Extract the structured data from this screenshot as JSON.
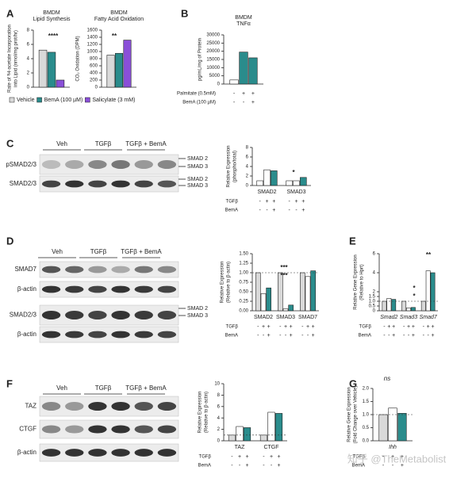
{
  "chart_data": [
    {
      "type": "bar",
      "title": [
        "BMDM",
        "Lipid Synthesis"
      ],
      "ylabel": [
        "Rate of ³H-acetate Incorporation",
        "into Lipid (nmol/mg prot/hr)"
      ],
      "categories": [
        null
      ],
      "ylim": [
        0,
        8
      ],
      "yticks": [
        0,
        2,
        4,
        6,
        8
      ],
      "series": [
        {
          "name": "Vehicle",
          "color": "#d9d9d9",
          "values": [
            5.2
          ]
        },
        {
          "name": "BemA (100 µM)",
          "color": "#2a8c8c",
          "values": [
            4.9
          ]
        },
        {
          "name": "Salicylate (3 mM)",
          "color": "#8a4fd8",
          "values": [
            1.0
          ]
        }
      ],
      "annotations": [
        "****"
      ]
    },
    {
      "type": "bar",
      "title": [
        "BMDM",
        "Fatty Acid Oxidation"
      ],
      "ylabel": [
        "CO₂ Oxidation (DPM)"
      ],
      "categories": [
        null
      ],
      "ylim": [
        0,
        1600
      ],
      "yticks": [
        0,
        200,
        400,
        600,
        800,
        1000,
        1200,
        1400,
        1600
      ],
      "series": [
        {
          "color": "#d9d9d9",
          "values": [
            900
          ]
        },
        {
          "color": "#2a8c8c",
          "values": [
            950
          ]
        },
        {
          "color": "#8a4fd8",
          "values": [
            1320
          ]
        }
      ],
      "annotations": [
        "**"
      ]
    },
    {
      "type": "bar",
      "title": [
        "BMDM",
        "TNFα"
      ],
      "ylabel": [
        "pg/mL/mg of Protein"
      ],
      "categories": [
        null
      ],
      "ylim": [
        0,
        30000
      ],
      "yticks": [
        0,
        5000,
        10000,
        15000,
        20000,
        25000,
        30000
      ],
      "series": [
        {
          "color": "#ffffff",
          "values": [
            2500
          ]
        },
        {
          "color": "#2a8c8c",
          "values": [
            19500
          ]
        },
        {
          "color": "#2a8c8c",
          "values": [
            16000
          ]
        }
      ],
      "conditions": [
        {
          "label": "Palmitate (0.5mM)",
          "signs": [
            "-",
            "+",
            "+"
          ]
        },
        {
          "label": "BemA (100 µM)",
          "signs": [
            "-",
            "-",
            "+"
          ]
        }
      ]
    },
    {
      "type": "bar",
      "ylabel": [
        "Relative Expression",
        "(phospho/total)"
      ],
      "categories": [
        "SMAD2",
        "SMAD3"
      ],
      "ylim": [
        0,
        8
      ],
      "yticks": [
        0,
        2,
        4,
        6,
        8
      ],
      "series": [
        {
          "color": "#ffffff",
          "values": [
            1,
            1
          ]
        },
        {
          "color": "#ffffff",
          "values": [
            3.3,
            1.0
          ]
        },
        {
          "color": "#2a8c8c",
          "values": [
            3.1,
            1.7
          ]
        }
      ],
      "conditions": [
        {
          "label": "TGFβ",
          "signs": [
            "-",
            "+",
            "+",
            "-",
            "+",
            "+"
          ]
        },
        {
          "label": "BemA",
          "signs": [
            "-",
            "-",
            "+",
            "-",
            "-",
            "+"
          ]
        }
      ],
      "annotations": [
        "*"
      ]
    },
    {
      "type": "bar",
      "ylabel": [
        "Relative Expression",
        "(Relative to β-actin)"
      ],
      "categories": [
        "SMAD2",
        "SMAD3",
        "SMAD7"
      ],
      "ylim": [
        0,
        1.5
      ],
      "yticks": [
        {
          "value": 0,
          "label": "0.00"
        },
        {
          "value": 0.25,
          "label": "0.25"
        },
        {
          "value": 0.5,
          "label": "0.50"
        },
        {
          "value": 0.75,
          "label": "0.75"
        },
        {
          "value": 1,
          "label": "1.00"
        },
        {
          "value": 1.25,
          "label": "1.25"
        },
        {
          "value": 1.5,
          "label": "1.50"
        }
      ],
      "reference_line": 1,
      "series": [
        {
          "color": "#d9d9d9",
          "values": [
            1,
            1,
            1
          ]
        },
        {
          "color": "#ffffff",
          "values": [
            0.45,
            0.05,
            0.9
          ]
        },
        {
          "color": "#2a8c8c",
          "values": [
            0.6,
            0.15,
            1.05
          ]
        }
      ],
      "conditions": [
        {
          "label": "TGFβ",
          "signs": [
            "-",
            "+",
            "+",
            "-",
            "+",
            "+",
            "-",
            "+",
            "+"
          ]
        },
        {
          "label": "BemA",
          "signs": [
            "-",
            "-",
            "+",
            "-",
            "-",
            "+",
            "-",
            "-",
            "+"
          ]
        }
      ],
      "annotations": [
        "***",
        "***"
      ]
    },
    {
      "type": "bar",
      "ylabel": [
        "Relative Gene Expression",
        "(Relative to Hprt)"
      ],
      "categories": [
        "Smad2",
        "Smad3",
        "Smad7"
      ],
      "ylim": [
        0,
        6
      ],
      "yticks": [
        0,
        0.5,
        {
          "value": 1,
          "label": "1.0"
        },
        1.5,
        2,
        4,
        6
      ],
      "reference_line": 1,
      "series": [
        {
          "color": "#d9d9d9",
          "values": [
            1,
            1,
            1
          ]
        },
        {
          "color": "#ffffff",
          "values": [
            1.3,
            0.3,
            4.2
          ]
        },
        {
          "color": "#2a8c8c",
          "values": [
            1.2,
            0.35,
            4.0
          ]
        }
      ],
      "conditions": [
        {
          "label": "TGFβ",
          "signs": [
            "-",
            "+",
            "+",
            "-",
            "+",
            "+",
            "-",
            "+",
            "+"
          ]
        },
        {
          "label": "BemA",
          "signs": [
            "-",
            "-",
            "+",
            "-",
            "-",
            "+",
            "-",
            "-",
            "+"
          ]
        }
      ],
      "annotations": [
        "**",
        "*",
        "*"
      ]
    },
    {
      "type": "bar",
      "ylabel": [
        "Relative Expression",
        "(Relative to β-actin)"
      ],
      "categories": [
        "TAZ",
        "CTGF"
      ],
      "ylim": [
        0,
        10
      ],
      "yticks": [
        0,
        2,
        4,
        6,
        8,
        10
      ],
      "reference_line": 1,
      "series": [
        {
          "color": "#d9d9d9",
          "values": [
            1,
            1
          ]
        },
        {
          "color": "#ffffff",
          "values": [
            2.5,
            5
          ]
        },
        {
          "color": "#2a8c8c",
          "values": [
            2.3,
            4.8
          ]
        }
      ],
      "conditions": [
        {
          "label": "TGFβ",
          "signs": [
            "-",
            "+",
            "+",
            "-",
            "+",
            "+"
          ]
        },
        {
          "label": "BemA",
          "signs": [
            "-",
            "-",
            "+",
            "-",
            "-",
            "+"
          ]
        }
      ]
    },
    {
      "type": "bar",
      "ylabel": [
        "Relative Gene Expression",
        "(Fold Change over Vehicle)"
      ],
      "categories": [
        "Ihh"
      ],
      "ylim": [
        0,
        2
      ],
      "yticks": [
        {
          "value": 0,
          "label": "0.0"
        },
        0.5,
        {
          "value": 1,
          "label": "1.0"
        },
        1.5,
        {
          "value": 2,
          "label": "2.0"
        }
      ],
      "reference_line": 1,
      "series": [
        {
          "color": "#d9d9d9",
          "values": [
            1
          ]
        },
        {
          "color": "#ffffff",
          "values": [
            1.25
          ]
        },
        {
          "color": "#2a8c8c",
          "values": [
            1.05
          ]
        }
      ],
      "conditions": [
        {
          "label": "TGFβ",
          "signs": [
            "-",
            "+",
            "+"
          ]
        },
        {
          "label": "BemA",
          "signs": [
            "-",
            "-",
            "+"
          ]
        }
      ],
      "annotations": [
        "ns"
      ]
    }
  ],
  "panels": {
    "letters": [
      "A",
      "B",
      "C",
      "D",
      "E",
      "F",
      "G"
    ],
    "blot_c": {
      "lanes": [
        "Veh",
        "TGFβ",
        "TGFβ + BemA"
      ],
      "rows": [
        "pSMAD2/3",
        "SMAD2/3"
      ],
      "bands": [
        "SMAD 2",
        "SMAD 3",
        "SMAD 2",
        "SMAD 3"
      ]
    },
    "blot_d": {
      "lanes": [
        "Veh",
        "TGFβ",
        "TGFβ + BemA"
      ],
      "rows": [
        "SMAD7",
        "β-actin",
        "SMAD2/3",
        "β-actin"
      ],
      "bands": [
        "SMAD 2",
        "SMAD 3"
      ]
    },
    "blot_f": {
      "lanes": [
        "Veh",
        "TGFβ",
        "TGFβ + BemA"
      ],
      "rows": [
        "TAZ",
        "CTGF",
        "β-actin"
      ]
    },
    "watermark": "知乎 @TheMetabolist"
  }
}
